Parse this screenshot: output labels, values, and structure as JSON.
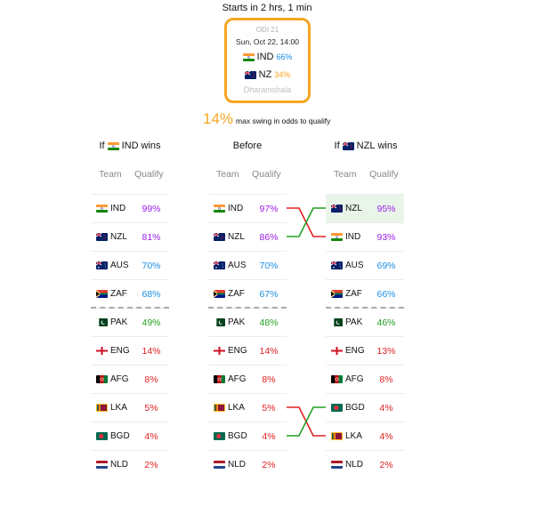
{
  "header": {
    "starts_in": "Starts in 2 hrs, 1 min"
  },
  "match": {
    "label": "ODI 21",
    "date": "Sun, Oct 22, 14:00",
    "team1": {
      "code": "IND",
      "pct": "66%",
      "flag": "india",
      "pct_color": "#1a8fe3"
    },
    "team2": {
      "code": "NZ",
      "pct": "34%",
      "flag": "newzealand",
      "pct_color": "#f5a623"
    },
    "venue": "Dharamshala",
    "border_color": "#f5a623"
  },
  "swing": {
    "value": "14%",
    "text": "max swing in odds to qualify"
  },
  "columns": {
    "left": {
      "prefix": "If",
      "code": "IND",
      "suffix": "wins",
      "flag": "india"
    },
    "middle": {
      "title": "Before"
    },
    "right": {
      "prefix": "If",
      "code": "NZL",
      "suffix": "wins",
      "flag": "newzealand"
    }
  },
  "table_headers": {
    "team": "Team",
    "qualify": "Qualify"
  },
  "tables": {
    "left": [
      {
        "code": "IND",
        "flag": "india",
        "pct": "99%",
        "color": "#9b1de8"
      },
      {
        "code": "NZL",
        "flag": "newzealand",
        "pct": "81%",
        "color": "#9b1de8"
      },
      {
        "code": "AUS",
        "flag": "australia",
        "pct": "70%",
        "color": "#1a8fe3"
      },
      {
        "code": "ZAF",
        "flag": "southafrica",
        "pct": "68%",
        "color": "#1a8fe3"
      },
      {
        "code": "PAK",
        "flag": "pakistan",
        "pct": "49%",
        "color": "#22a022"
      },
      {
        "code": "ENG",
        "flag": "england",
        "pct": "14%",
        "color": "#e02020"
      },
      {
        "code": "AFG",
        "flag": "afghanistan",
        "pct": "8%",
        "color": "#e02020"
      },
      {
        "code": "LKA",
        "flag": "srilanka",
        "pct": "5%",
        "color": "#e02020"
      },
      {
        "code": "BGD",
        "flag": "bangladesh",
        "pct": "4%",
        "color": "#e02020"
      },
      {
        "code": "NLD",
        "flag": "netherlands",
        "pct": "2%",
        "color": "#e02020"
      }
    ],
    "middle": [
      {
        "code": "IND",
        "flag": "india",
        "pct": "97%",
        "color": "#9b1de8"
      },
      {
        "code": "NZL",
        "flag": "newzealand",
        "pct": "86%",
        "color": "#9b1de8"
      },
      {
        "code": "AUS",
        "flag": "australia",
        "pct": "70%",
        "color": "#1a8fe3"
      },
      {
        "code": "ZAF",
        "flag": "southafrica",
        "pct": "67%",
        "color": "#1a8fe3"
      },
      {
        "code": "PAK",
        "flag": "pakistan",
        "pct": "48%",
        "color": "#22a022"
      },
      {
        "code": "ENG",
        "flag": "england",
        "pct": "14%",
        "color": "#e02020"
      },
      {
        "code": "AFG",
        "flag": "afghanistan",
        "pct": "8%",
        "color": "#e02020"
      },
      {
        "code": "LKA",
        "flag": "srilanka",
        "pct": "5%",
        "color": "#e02020"
      },
      {
        "code": "BGD",
        "flag": "bangladesh",
        "pct": "4%",
        "color": "#e02020"
      },
      {
        "code": "NLD",
        "flag": "netherlands",
        "pct": "2%",
        "color": "#e02020"
      }
    ],
    "right": [
      {
        "code": "NZL",
        "flag": "newzealand",
        "pct": "95%",
        "color": "#9b1de8",
        "highlight": true
      },
      {
        "code": "IND",
        "flag": "india",
        "pct": "93%",
        "color": "#9b1de8"
      },
      {
        "code": "AUS",
        "flag": "australia",
        "pct": "69%",
        "color": "#1a8fe3"
      },
      {
        "code": "ZAF",
        "flag": "southafrica",
        "pct": "66%",
        "color": "#1a8fe3"
      },
      {
        "code": "PAK",
        "flag": "pakistan",
        "pct": "46%",
        "color": "#22a022"
      },
      {
        "code": "ENG",
        "flag": "england",
        "pct": "13%",
        "color": "#e02020"
      },
      {
        "code": "AFG",
        "flag": "afghanistan",
        "pct": "8%",
        "color": "#e02020"
      },
      {
        "code": "BGD",
        "flag": "bangladesh",
        "pct": "4%",
        "color": "#e02020"
      },
      {
        "code": "LKA",
        "flag": "srilanka",
        "pct": "4%",
        "color": "#e02020"
      },
      {
        "code": "NLD",
        "flag": "netherlands",
        "pct": "2%",
        "color": "#e02020"
      }
    ]
  },
  "colors": {
    "swap_up": "#22a022",
    "swap_down": "#e02020",
    "highlight_bg": "#e9f5e9"
  }
}
